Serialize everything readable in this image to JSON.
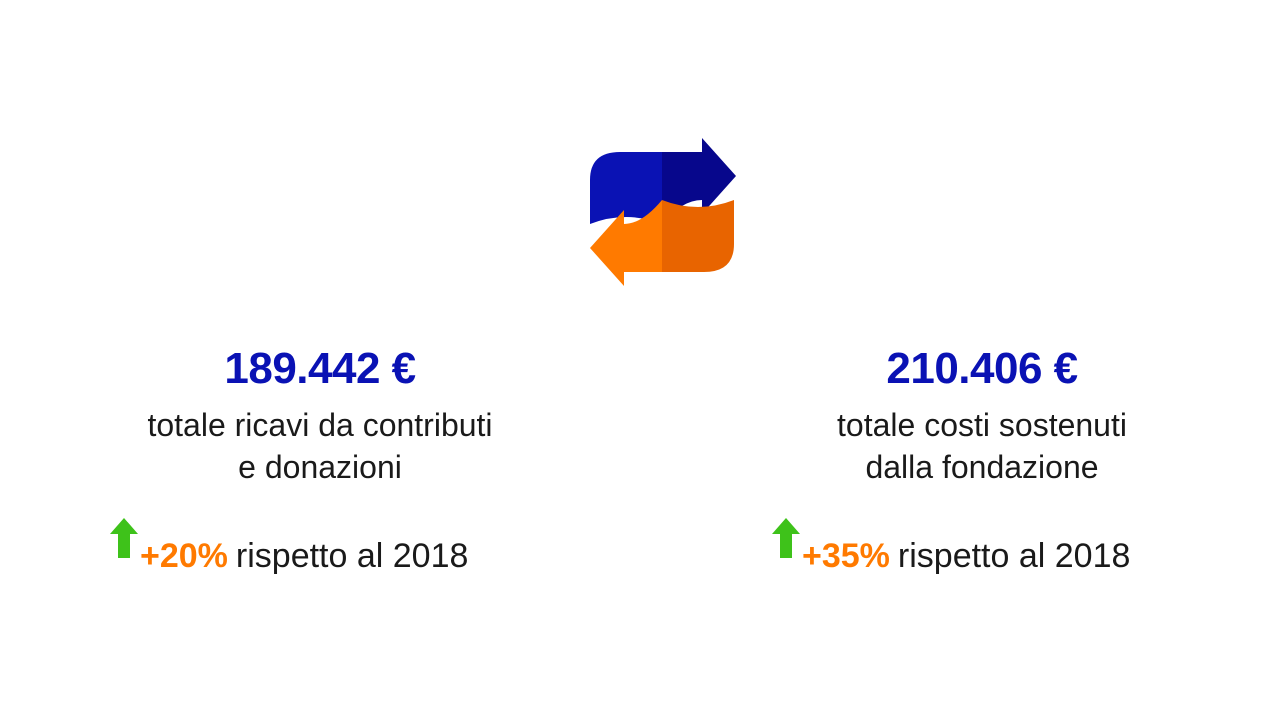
{
  "icon": "exchange-arrows-icon",
  "colors": {
    "blue": "#0a12b4",
    "dark_blue": "#07078c",
    "orange": "#ff7a00",
    "dark_orange": "#e86400",
    "green": "#3ec21a"
  },
  "left": {
    "amount": "189.442 €",
    "desc_line1": "totale ricavi da contributi",
    "desc_line2": "e donazioni",
    "change_pct": "+20%",
    "change_suffix": "rispetto al 2018",
    "trend_icon": "up-arrow-icon"
  },
  "right": {
    "amount": "210.406 €",
    "desc_line1": "totale costi sostenuti",
    "desc_line2": "dalla fondazione",
    "change_pct": "+35%",
    "change_suffix": "rispetto al 2018",
    "trend_icon": "up-arrow-icon"
  }
}
